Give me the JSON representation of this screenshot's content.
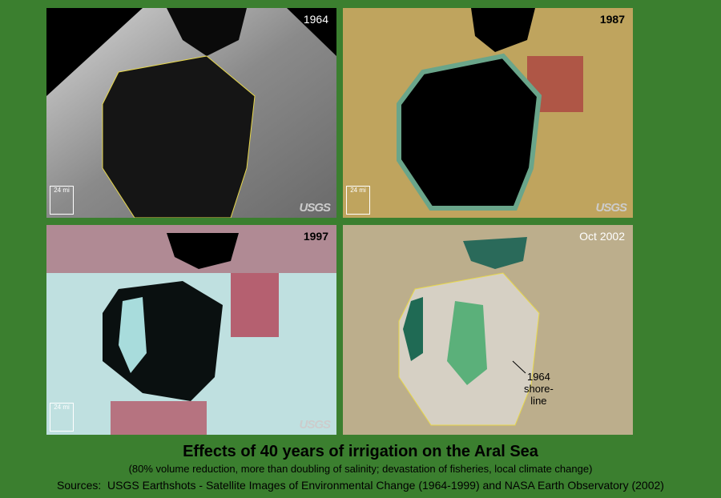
{
  "panels": [
    {
      "label": "1964",
      "scale": "24 mi",
      "logo": "USGS"
    },
    {
      "label": "1987",
      "scale": "24 mi",
      "logo": "USGS"
    },
    {
      "label": "1997",
      "scale": "24 mi",
      "logo": "USGS"
    },
    {
      "label": "Oct 2002",
      "annotation": [
        "1964",
        "shore-",
        "line"
      ]
    }
  ],
  "caption": {
    "title": "Effects of 40 years of irrigation on the Aral Sea",
    "subtitle": "(80% volume reduction, more than doubling of salinity; devastation of fisheries, local climate change)",
    "sources": "Sources:  USGS Earthshots - Satellite Images of Environmental Change (1964-1999) and NASA Earth Observatory (2002)"
  }
}
